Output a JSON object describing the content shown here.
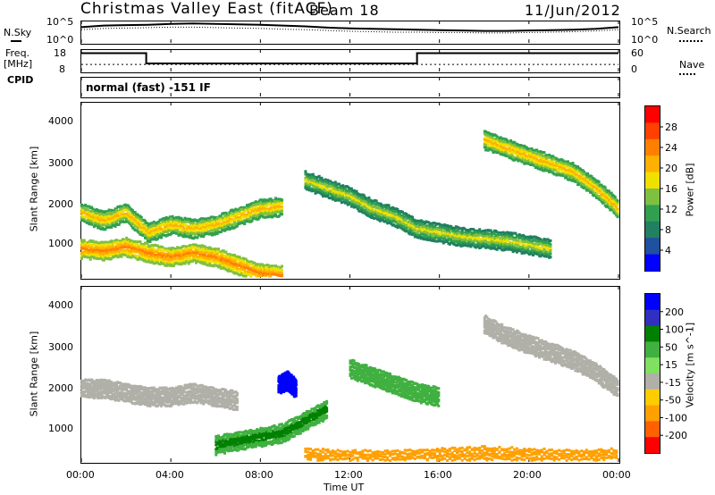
{
  "header": {
    "title": "Christmas Valley East (fitACF)",
    "beam": "Beam 18",
    "date": "11/Jun/2012"
  },
  "nsky_panel": {
    "left_label": "N.Sky",
    "left_ticks": [
      "10^5",
      "10^0"
    ],
    "right_ticks": [
      "10^5",
      "10^0"
    ],
    "right_label": "N.Search"
  },
  "freq_panel": {
    "left_label_line1": "Freq.",
    "left_label_line2": "[MHz]",
    "left_ticks": [
      "18",
      "8"
    ],
    "right_ticks": [
      "60",
      "0"
    ],
    "right_label": "Nave"
  },
  "cpid_panel": {
    "label": "CPID",
    "value": "normal (fast) -151 IF"
  },
  "x_axis": {
    "tick_labels": [
      "00:00",
      "04:00",
      "08:00",
      "12:00",
      "16:00",
      "20:00",
      "00:00"
    ],
    "title": "Time UT"
  },
  "power_panel": {
    "ylabel": "Slant Range [km]",
    "yticks": [
      "4000",
      "3000",
      "2000",
      "1000"
    ],
    "colorbar_label": "Power [dB]",
    "colorbar_ticks": [
      "28",
      "24",
      "20",
      "16",
      "12",
      "8",
      "4"
    ],
    "colorbar_colors": [
      "#ff0000",
      "#ff4000",
      "#ff8000",
      "#ffb000",
      "#f0e000",
      "#80c040",
      "#30a050",
      "#208060",
      "#2050a0",
      "#0000ff"
    ]
  },
  "velocity_panel": {
    "ylabel": "Slant Range [km]",
    "yticks": [
      "4000",
      "3000",
      "2000",
      "1000"
    ],
    "colorbar_label": "Velocity [m s^-1]",
    "colorbar_ticks": [
      "200",
      "100",
      "50",
      "15",
      "-15",
      "-50",
      "-100",
      "-200"
    ],
    "colorbar_colors": [
      "#0000ff",
      "#3030c0",
      "#008000",
      "#40b040",
      "#80e060",
      "#b0b0a8",
      "#ffcc00",
      "#ffa000",
      "#ff6000",
      "#ff0000"
    ]
  },
  "chart_data": [
    {
      "type": "line",
      "title": "N.Sky / N.Search",
      "x_unit": "hours UT",
      "xlim": [
        0,
        24
      ],
      "series": [
        {
          "name": "N.Sky",
          "x": [
            0,
            1,
            2,
            3,
            4,
            5,
            6,
            7,
            8,
            9,
            10,
            11,
            12,
            13,
            14,
            15,
            16,
            17,
            18,
            19,
            20,
            21,
            22,
            23,
            24
          ],
          "values": [
            3.6,
            4.0,
            4.1,
            4.2,
            4.4,
            4.5,
            4.4,
            4.3,
            4.2,
            4.0,
            3.8,
            3.5,
            3.3,
            3.2,
            3.1,
            3.0,
            2.9,
            2.8,
            2.7,
            2.7,
            2.8,
            2.9,
            3.0,
            3.2,
            3.6
          ]
        },
        {
          "name": "N.Search",
          "x": [
            0,
            1,
            2,
            3,
            4,
            5,
            6,
            7,
            8,
            9,
            10,
            11,
            12,
            13,
            14,
            15,
            16,
            17,
            18,
            19,
            20,
            21,
            22,
            23,
            24
          ],
          "values": [
            3.0,
            3.3,
            3.4,
            3.5,
            3.6,
            3.6,
            3.5,
            3.4,
            3.3,
            3.1,
            3.0,
            2.8,
            2.6,
            2.5,
            2.4,
            2.4,
            2.3,
            2.3,
            2.2,
            2.2,
            2.3,
            2.4,
            2.5,
            2.7,
            3.0
          ]
        }
      ]
    },
    {
      "type": "line",
      "title": "Freq / Nave",
      "x_unit": "hours UT",
      "xlim": [
        0,
        24
      ],
      "series": [
        {
          "name": "Freq.",
          "x": [
            0,
            2.9,
            2.9,
            15.0,
            15.0,
            24
          ],
          "values": [
            16.5,
            16.5,
            11.5,
            11.5,
            16.5,
            16.5
          ]
        },
        {
          "name": "Nave",
          "x": [
            0,
            24
          ],
          "values": [
            18,
            18
          ]
        }
      ]
    },
    {
      "type": "heatmap",
      "title": "Power [dB]",
      "x_unit": "hours UT",
      "y_unit": "Slant Range [km]",
      "xlim": [
        0,
        24
      ],
      "ylim": [
        180,
        4500
      ],
      "features": [
        {
          "x": [
            0,
            1,
            2,
            3,
            4,
            5,
            6,
            7,
            8,
            9
          ],
          "y": [
            1800,
            1600,
            1800,
            1300,
            1500,
            1400,
            1500,
            1700,
            1900,
            1950
          ],
          "value": 22
        },
        {
          "x": [
            0,
            1,
            2,
            3,
            4,
            5,
            6,
            7,
            8,
            9
          ],
          "y": [
            900,
            850,
            950,
            800,
            700,
            800,
            700,
            500,
            300,
            250
          ],
          "value": 24
        },
        {
          "x": [
            10,
            11,
            12,
            13,
            14,
            15,
            16,
            17,
            18,
            19,
            20,
            21
          ],
          "y": [
            2600,
            2400,
            2200,
            1900,
            1700,
            1400,
            1300,
            1200,
            1150,
            1100,
            1000,
            900
          ],
          "value": 18
        },
        {
          "x": [
            18,
            19,
            20,
            21,
            22,
            23,
            24
          ],
          "y": [
            3600,
            3400,
            3200,
            3000,
            2800,
            2400,
            1900
          ],
          "value": 20
        }
      ]
    },
    {
      "type": "heatmap",
      "title": "Velocity [m s^-1]",
      "x_unit": "hours UT",
      "y_unit": "Slant Range [km]",
      "xlim": [
        0,
        24
      ],
      "ylim": [
        180,
        4500
      ],
      "features": [
        {
          "x": [
            0,
            1,
            2,
            3,
            4,
            5,
            6,
            7
          ],
          "y": [
            2000,
            2000,
            1900,
            1800,
            1800,
            1900,
            1800,
            1700
          ],
          "value": 0
        },
        {
          "x": [
            8.8,
            9.2,
            9.6
          ],
          "y": [
            2100,
            2200,
            2000
          ],
          "value": 200
        },
        {
          "x": [
            6,
            7,
            8,
            9,
            10,
            11
          ],
          "y": [
            600,
            700,
            800,
            900,
            1200,
            1500
          ],
          "value": 40
        },
        {
          "x": [
            10,
            12,
            14,
            16,
            18,
            20,
            22,
            24
          ],
          "y": [
            300,
            250,
            250,
            300,
            350,
            300,
            250,
            300
          ],
          "value": -60
        },
        {
          "x": [
            12,
            13,
            14,
            15,
            16
          ],
          "y": [
            2500,
            2300,
            2100,
            1900,
            1800
          ],
          "value": 30
        },
        {
          "x": [
            18,
            19,
            20,
            21,
            22,
            23,
            24
          ],
          "y": [
            3600,
            3300,
            3100,
            2900,
            2700,
            2400,
            2000
          ],
          "value": 0
        }
      ]
    }
  ]
}
